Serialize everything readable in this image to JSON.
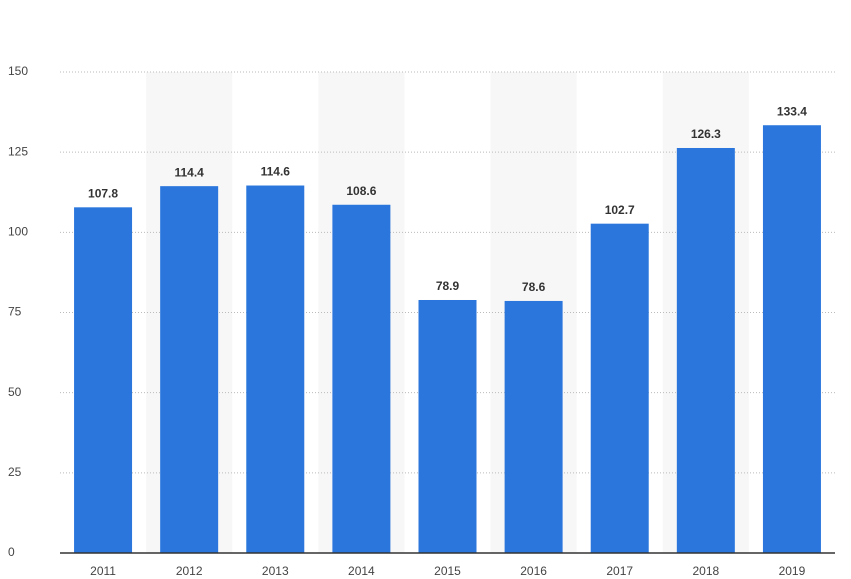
{
  "chart_data": {
    "type": "bar",
    "categories": [
      "2011",
      "2012",
      "2013",
      "2014",
      "2015",
      "2016",
      "2017",
      "2018",
      "2019"
    ],
    "values": [
      107.8,
      114.4,
      114.6,
      108.6,
      78.9,
      78.6,
      102.7,
      126.3,
      133.4
    ],
    "color": "#2a76dd",
    "ylim": [
      0,
      150
    ],
    "yticks": [
      0,
      25,
      50,
      75,
      100,
      125,
      150
    ],
    "grid": true
  }
}
